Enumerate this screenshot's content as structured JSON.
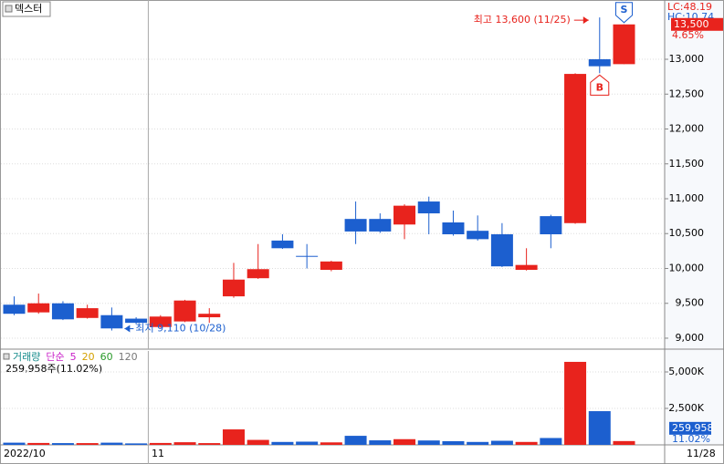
{
  "chart_data": [
    {
      "type": "candlestick",
      "title": "덱스터",
      "categories": [
        "2022/10",
        null,
        null,
        null,
        null,
        null,
        "11",
        null,
        null,
        null,
        null,
        null,
        null,
        null,
        null,
        null,
        null,
        null,
        null,
        null,
        null,
        null,
        null,
        null,
        null,
        null
      ],
      "open": [
        9480,
        9370,
        9500,
        9290,
        9330,
        9280,
        9160,
        9240,
        9300,
        9600,
        9860,
        10400,
        10180,
        9980,
        10710,
        10710,
        10630,
        10960,
        10660,
        10540,
        10490,
        9980,
        10750,
        10650,
        13000,
        12930
      ],
      "high": [
        9600,
        9640,
        9530,
        9480,
        9440,
        9300,
        9330,
        9550,
        9430,
        10080,
        10350,
        10490,
        10350,
        10110,
        10960,
        10790,
        10920,
        11030,
        10830,
        10760,
        10650,
        10290,
        10770,
        12800,
        13600,
        13500
      ],
      "low": [
        9330,
        9350,
        9260,
        9280,
        9110,
        9200,
        9150,
        9230,
        9220,
        9580,
        9850,
        10280,
        10000,
        9960,
        10350,
        10510,
        10420,
        10490,
        10470,
        10400,
        10020,
        9970,
        10290,
        10640,
        12800,
        12930
      ],
      "close": [
        9350,
        9500,
        9270,
        9430,
        9140,
        9220,
        9310,
        9540,
        9350,
        9840,
        9990,
        10290,
        10180,
        10100,
        10530,
        10530,
        10900,
        10790,
        10490,
        10420,
        10030,
        10050,
        10490,
        12790,
        12900,
        13500
      ],
      "up_color": "#e8231d",
      "down_color": "#1c5fcf",
      "ylim": [
        8882,
        13850
      ],
      "yticks": [
        {
          "value": 9000,
          "label": "9,000"
        },
        {
          "value": 9500,
          "label": "9,500"
        },
        {
          "value": 10000,
          "label": "10,000"
        },
        {
          "value": 10500,
          "label": "10,500"
        },
        {
          "value": 11000,
          "label": "11,000"
        },
        {
          "value": 11500,
          "label": "11,500"
        },
        {
          "value": 12000,
          "label": "12,000"
        },
        {
          "value": 12500,
          "label": "12,500"
        },
        {
          "value": 13000,
          "label": "13,000"
        }
      ],
      "grid": true,
      "high_annotation": "최고 13,600 (11/25)",
      "low_annotation": "최저 9,110 (10/28)",
      "sell_signal": "S",
      "buy_signal": "B",
      "lc_label": "LC:48.19",
      "hc_label": "HC:10.74",
      "last_value_label": "13,500",
      "change_label": "4.65%"
    },
    {
      "type": "volume",
      "legend": [
        "거래량",
        "단순",
        "5",
        "20",
        "60",
        "120"
      ],
      "info": "259,958주(11.02%)",
      "values": [
        150,
        130,
        120,
        120,
        150,
        100,
        130,
        180,
        120,
        1060,
        340,
        200,
        220,
        170,
        620,
        310,
        390,
        300,
        250,
        200,
        280,
        200,
        470,
        5690,
        2310,
        259.958
      ],
      "ylim": [
        0,
        6437
      ],
      "yticks": [
        {
          "value": 2500,
          "label": "2,500K"
        },
        {
          "value": 5000,
          "label": "5,000K"
        }
      ],
      "last_value_label": "259,958",
      "change_label": "11.02%"
    }
  ],
  "x_axis_end_label": "11/28"
}
